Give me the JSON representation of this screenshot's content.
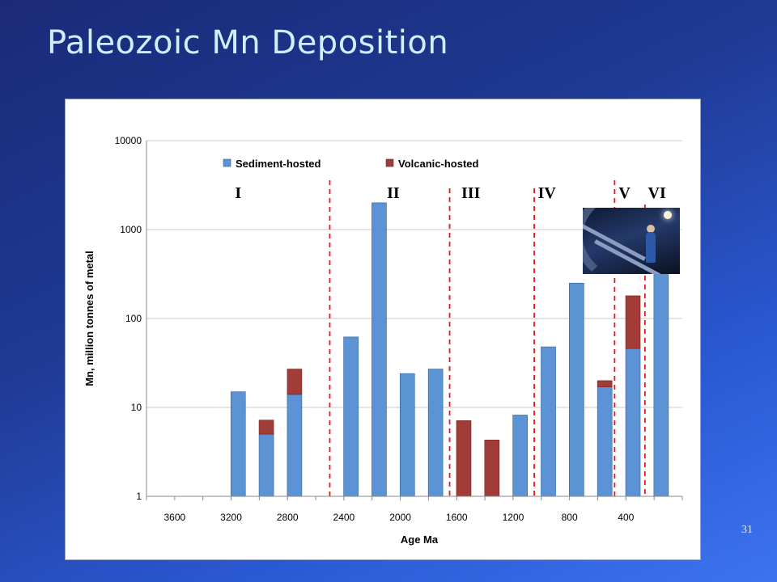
{
  "slide": {
    "title": "Paleozoic Mn Deposition",
    "page_number": "31"
  },
  "colors": {
    "sediment": "#5b93d4",
    "volcanic": "#a13c38",
    "divider": "#e8141e",
    "grid": "#c8c8c8"
  },
  "photo": {
    "icon": "mine-tunnel-photo"
  },
  "chart_data": {
    "type": "bar",
    "stacked": true,
    "xlabel": "Age Ma",
    "ylabel": "Mn, million tonnes of metal",
    "y_scale": "log",
    "ylim": [
      1,
      10000
    ],
    "y_ticks": [
      "1",
      "10",
      "100",
      "1000",
      "10000"
    ],
    "x_ticks": [
      "3600",
      "3200",
      "2800",
      "2400",
      "2000",
      "1600",
      "1200",
      "800",
      "400"
    ],
    "xlim": [
      3800,
      0
    ],
    "grid": "horizontal",
    "legend": {
      "placement": "top",
      "entries": [
        "Sediment-hosted",
        "Volcanic-hosted"
      ]
    },
    "eras": [
      {
        "label": "I",
        "age": 3150
      },
      {
        "label": "II",
        "age": 2050
      },
      {
        "label": "III",
        "age": 1500
      },
      {
        "label": "IV",
        "age": 960
      },
      {
        "label": "V",
        "age": 410
      },
      {
        "label": "VI",
        "age": 180
      }
    ],
    "era_boundaries": [
      2500,
      1650,
      1050,
      480,
      265
    ],
    "series": [
      {
        "name": "Sediment-hosted",
        "points": [
          {
            "age": 3150,
            "value": 15
          },
          {
            "age": 2950,
            "value": 5
          },
          {
            "age": 2750,
            "value": 14
          },
          {
            "age": 2350,
            "value": 62
          },
          {
            "age": 2150,
            "value": 2000
          },
          {
            "age": 1950,
            "value": 24
          },
          {
            "age": 1750,
            "value": 27
          },
          {
            "age": 1150,
            "value": 8.2
          },
          {
            "age": 950,
            "value": 48
          },
          {
            "age": 750,
            "value": 250
          },
          {
            "age": 550,
            "value": 17
          },
          {
            "age": 350,
            "value": 46
          },
          {
            "age": 150,
            "value": 330
          }
        ]
      },
      {
        "name": "Volcanic-hosted",
        "points": [
          {
            "age": 2950,
            "value": 2.2
          },
          {
            "age": 2750,
            "value": 13
          },
          {
            "age": 1550,
            "value": 6.1
          },
          {
            "age": 1350,
            "value": 3.3
          },
          {
            "age": 550,
            "value": 3
          },
          {
            "age": 350,
            "value": 134
          },
          {
            "age": 150,
            "value": 0
          }
        ]
      }
    ]
  }
}
